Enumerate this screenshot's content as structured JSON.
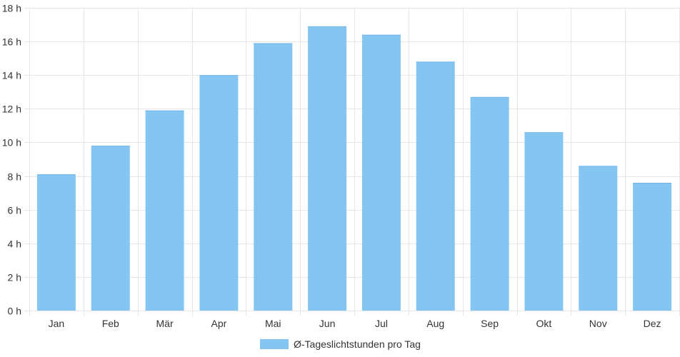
{
  "chart_data": {
    "type": "bar",
    "categories": [
      "Jan",
      "Feb",
      "Mär",
      "Apr",
      "Mai",
      "Jun",
      "Jul",
      "Aug",
      "Sep",
      "Okt",
      "Nov",
      "Dez"
    ],
    "series": [
      {
        "name": "Ø-Tageslichtstunden pro Tag",
        "values": [
          8.1,
          9.8,
          11.9,
          14.0,
          15.9,
          16.9,
          16.4,
          14.8,
          12.7,
          10.6,
          8.6,
          7.6
        ],
        "color": "#85c5f2"
      }
    ],
    "y_ticks": [
      "0 h",
      "2 h",
      "4 h",
      "6 h",
      "8 h",
      "10 h",
      "12 h",
      "14 h",
      "16 h",
      "18 h"
    ],
    "ylim": [
      0,
      18
    ],
    "grid": true,
    "legend": "bottom-center"
  }
}
